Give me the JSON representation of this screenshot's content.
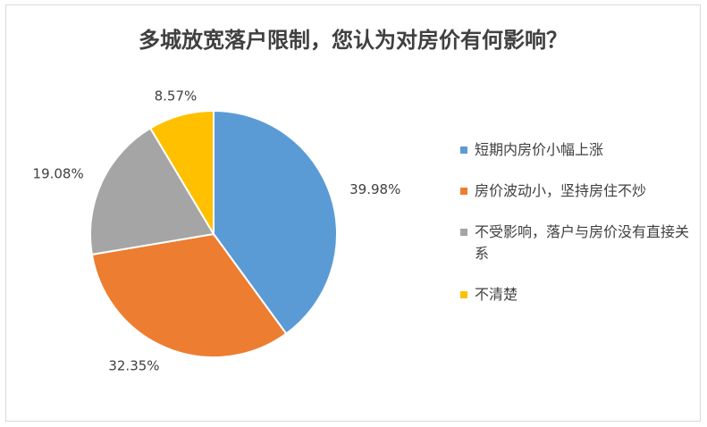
{
  "chart_data": {
    "type": "pie",
    "title": "多城放宽落户限制，您认为对房价有何影响？",
    "categories": [
      "短期内房价小幅上涨",
      "房价波动小，坚持房住不炒",
      "不受影响，落户与房价没有直接关系",
      "不清楚"
    ],
    "values": [
      39.98,
      32.35,
      19.08,
      8.57
    ],
    "value_labels": [
      "39.98%",
      "32.35%",
      "19.08%",
      "8.57%"
    ],
    "colors": [
      "#5b9bd5",
      "#ed7d31",
      "#a5a5a5",
      "#ffc000"
    ],
    "legend": "right"
  }
}
